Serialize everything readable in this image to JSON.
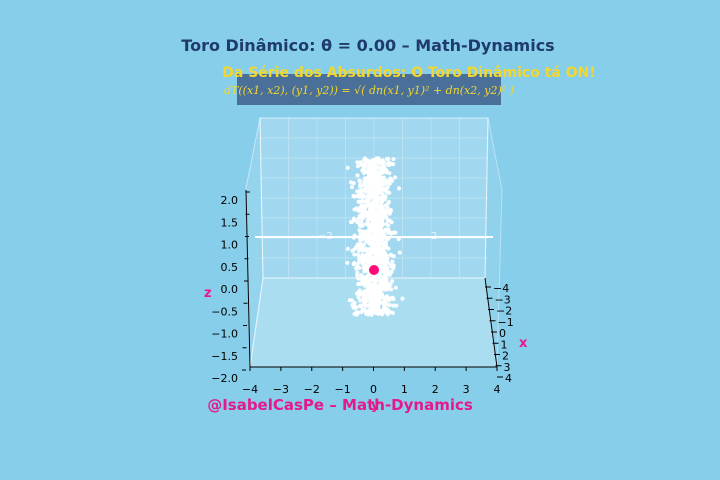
{
  "header": {
    "title": "Toro Dinâmico: θ = 0.00 – Math-Dynamics",
    "subtitle": "Da Série dos Absurdos: O Toro Dinâmico tá ON!"
  },
  "formula": {
    "text": "dT((x1, x2), (y1, y2)) = √( dn(x1, y1)² + dn(x2, y2)² )"
  },
  "footer": {
    "credit": "@IsabelCasPe – Math-Dynamics"
  },
  "colors": {
    "background": "#87CEEB",
    "title": "#1f3b6b",
    "subtitle": "#f2d72e",
    "formula_box": "#4a7099",
    "formula_text": "#f2d72e",
    "points": "#ffffff",
    "marker": "#ff0a78",
    "axis_letters": "#e6198a",
    "credit": "#e6198a"
  },
  "chart_data": {
    "type": "scatter",
    "projection": "3d",
    "xlabel": "x",
    "ylabel": "y",
    "zlabel": "z",
    "xlim": [
      -4,
      4
    ],
    "ylim": [
      -4,
      4
    ],
    "zlim": [
      -2,
      2
    ],
    "y_ticks": [
      "−4",
      "−3",
      "−2",
      "−1",
      "0",
      "1",
      "2",
      "3",
      "4"
    ],
    "x_ticks": [
      "−4",
      "−3",
      "−2",
      "−1",
      "0",
      "1",
      "2",
      "3",
      "4"
    ],
    "z_ticks": [
      "−2.0",
      "−1.5",
      "−1.0",
      "−0.5",
      "0.0",
      "0.5",
      "1.0",
      "1.5",
      "2.0"
    ],
    "theta": 0.0,
    "point_cloud": {
      "count": 1200,
      "y_spread": 0.7,
      "z_range": [
        -0.8,
        2.0
      ]
    },
    "highlight_point": {
      "x": 0,
      "y": 0,
      "z": 0
    },
    "horizontal_line": {
      "z": 1.1,
      "labels": [
        "−2",
        "2"
      ]
    }
  }
}
